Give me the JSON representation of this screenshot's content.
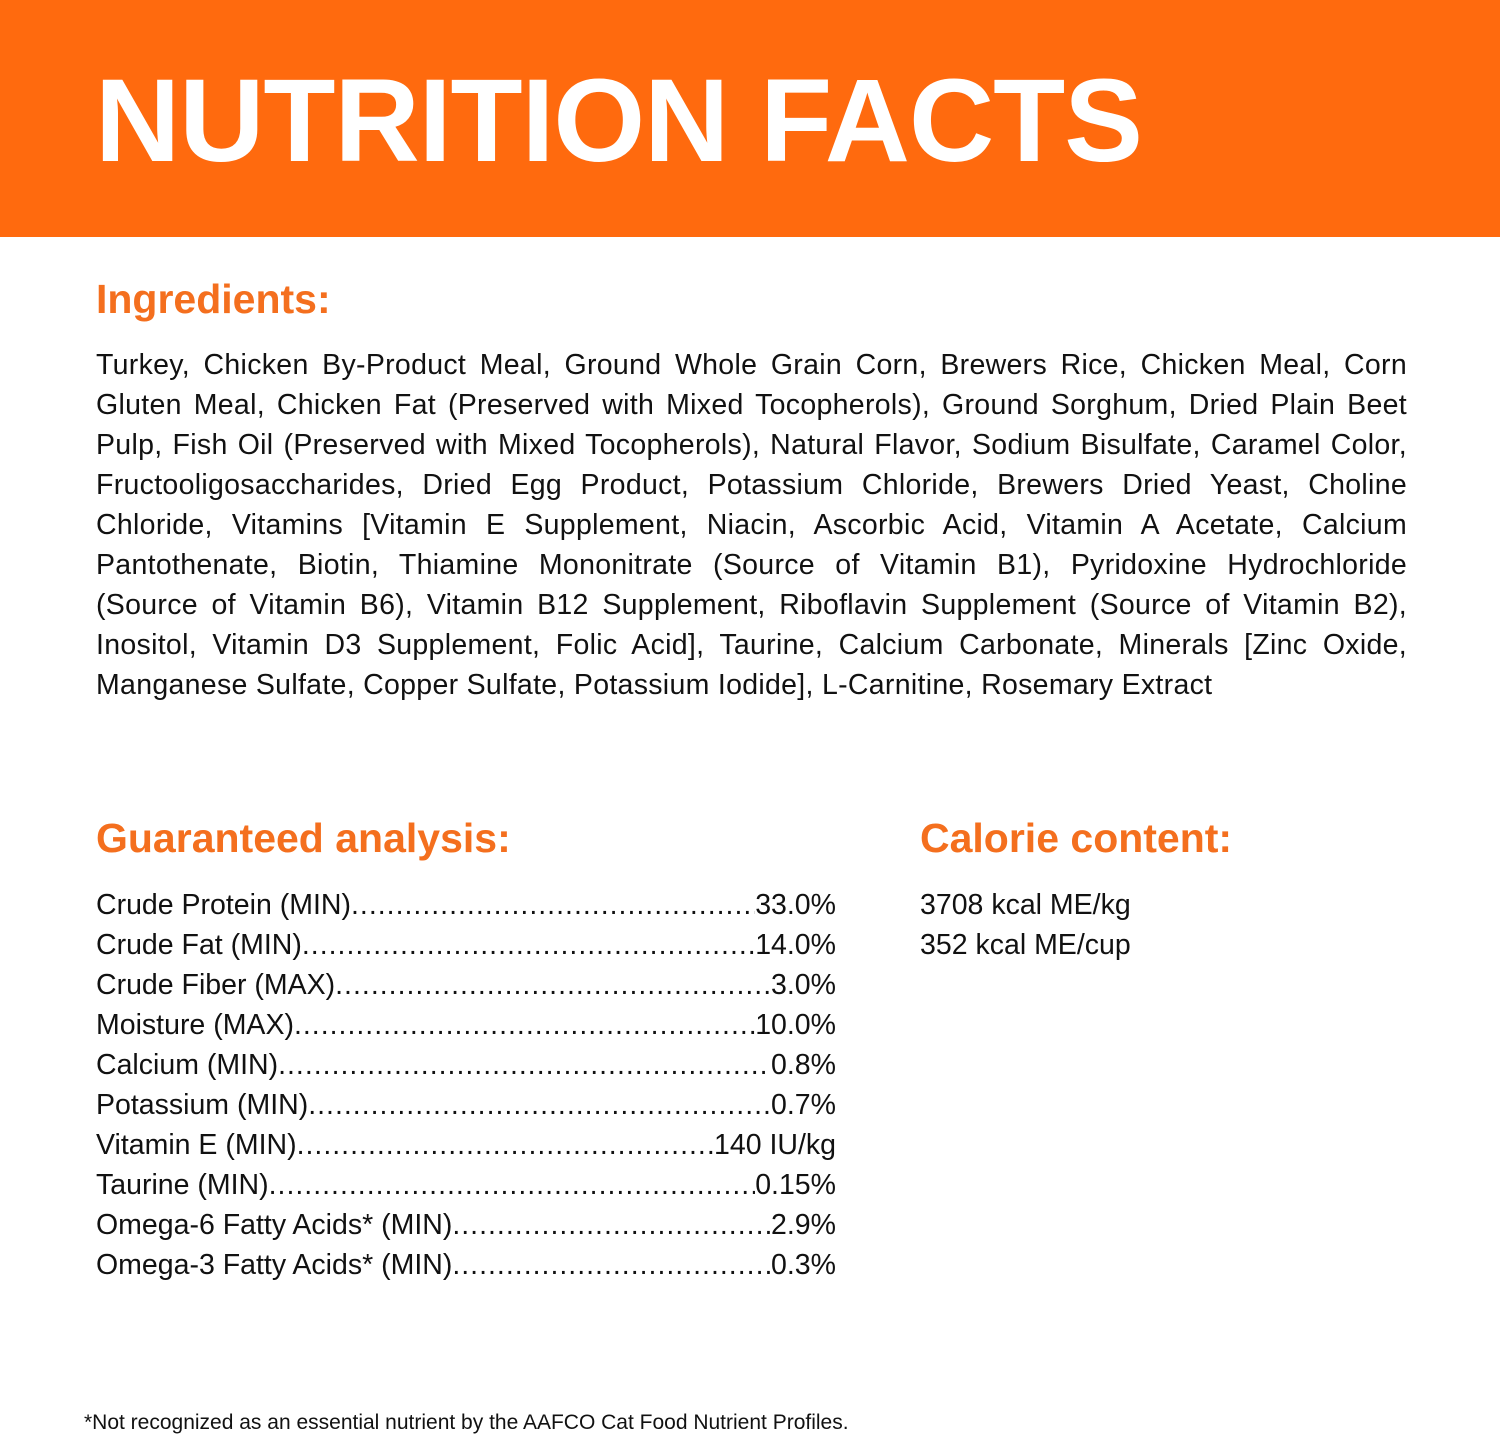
{
  "header": {
    "title": "NUTRITION FACTS",
    "color": "#FF6A0E"
  },
  "ingredients": {
    "heading": "Ingredients:",
    "text": "Turkey, Chicken By-Product Meal, Ground Whole Grain Corn, Brewers Rice, Chicken Meal, Corn Gluten Meal, Chicken Fat (Preserved with Mixed Tocopherols), Ground Sorghum, Dried Plain Beet Pulp, Fish Oil (Preserved with Mixed Tocopherols), Natural Flavor, Sodium Bisulfate, Caramel Color, Fructooligosaccharides, Dried Egg Product, Potassium Chloride, Brewers Dried Yeast, Choline Chloride, Vitamins [Vitamin E Supplement, Niacin, Ascorbic Acid, Vitamin A Acetate, Calcium Pantothenate, Biotin, Thiamine Mononitrate (Source of Vitamin B1), Pyridoxine Hydrochloride (Source of Vitamin B6), Vitamin B12 Supplement, Riboflavin Supplement (Source of Vitamin B2), Inositol, Vitamin D3 Supplement, Folic Acid], Taurine, Calcium Carbonate, Minerals [Zinc Oxide, Manganese Sulfate, Copper Sulfate, Potassium Iodide], L-Carnitine, Rosemary Extract"
  },
  "analysis": {
    "heading": "Guaranteed analysis:",
    "rows": [
      {
        "label": "Crude Protein (MIN)",
        "value": "33.0%"
      },
      {
        "label": "Crude Fat (MIN)",
        "value": "14.0%"
      },
      {
        "label": "Crude Fiber (MAX)",
        "value": "3.0%"
      },
      {
        "label": "Moisture (MAX)",
        "value": "10.0%"
      },
      {
        "label": "Calcium (MIN)",
        "value": "0.8%"
      },
      {
        "label": "Potassium (MIN)",
        "value": "0.7%"
      },
      {
        "label": "Vitamin E (MIN)",
        "value": "140 IU/kg"
      },
      {
        "label": "Taurine (MIN)",
        "value": "0.15%"
      },
      {
        "label": "Omega-6 Fatty Acids* (MIN)",
        "value": "2.9%"
      },
      {
        "label": "Omega-3 Fatty Acids* (MIN)",
        "value": "0.3%"
      }
    ]
  },
  "calorie": {
    "heading": "Calorie content:",
    "lines": [
      "3708 kcal ME/kg",
      "352 kcal ME/cup"
    ]
  },
  "footnote": "*Not recognized as an essential nutrient by the AAFCO Cat Food Nutrient Profiles."
}
